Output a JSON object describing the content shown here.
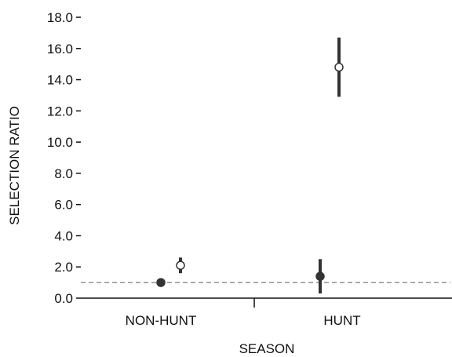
{
  "chart_data": {
    "type": "scatter",
    "title": "",
    "xlabel": "SEASON",
    "ylabel": "SELECTION RATIO",
    "ylim": [
      0,
      18
    ],
    "yticks": [
      0,
      2,
      4,
      6,
      8,
      10,
      12,
      14,
      16,
      18
    ],
    "ytick_labels": [
      "0.0",
      "2.0",
      "4.0",
      "6.0",
      "8.0",
      "10.0",
      "12.0",
      "14.0",
      "16.0",
      "18.0"
    ],
    "categories": [
      "NON-HUNT",
      "HUNT"
    ],
    "reference_line": {
      "y": 1.0,
      "style": "dashed",
      "color": "#7a7a7a"
    },
    "series": [
      {
        "marker": "filled-circle",
        "color": "#333333",
        "points": [
          {
            "category": "NON-HUNT",
            "y": 1.0,
            "low": 0.8,
            "high": 1.2
          },
          {
            "category": "HUNT",
            "y": 1.4,
            "low": 0.3,
            "high": 2.5
          }
        ]
      },
      {
        "marker": "open-circle",
        "color": "#333333",
        "points": [
          {
            "category": "NON-HUNT",
            "y": 2.1,
            "low": 1.6,
            "high": 2.6
          },
          {
            "category": "HUNT",
            "y": 14.8,
            "low": 12.9,
            "high": 16.7
          }
        ]
      }
    ],
    "grid": false,
    "legend": "none"
  }
}
